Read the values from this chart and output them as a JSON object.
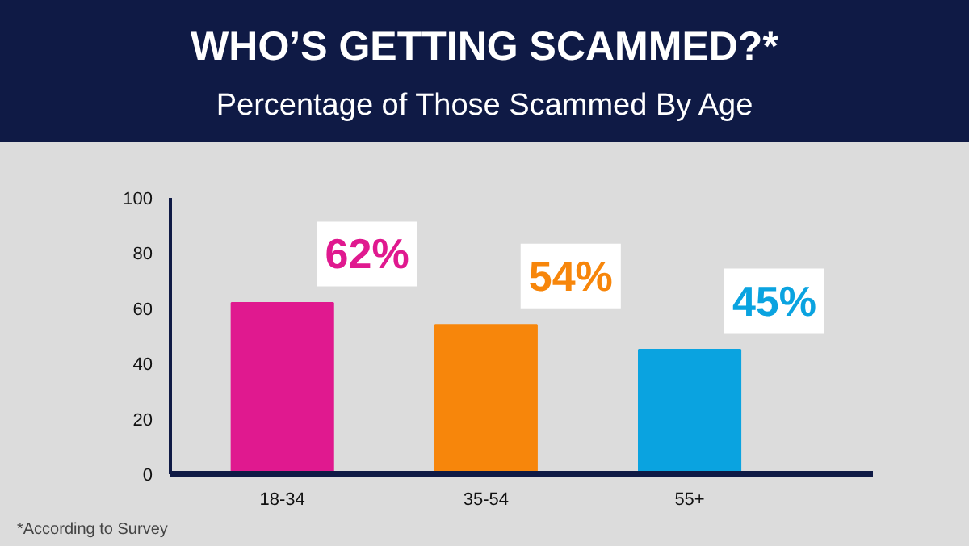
{
  "chart_data": {
    "type": "bar",
    "title": "WHO’S GETTING SCAMMED?*",
    "subtitle": "Percentage of Those Scammed By Age",
    "categories": [
      "18-34",
      "35-54",
      "55+"
    ],
    "values": [
      62,
      54,
      45
    ],
    "colors": [
      "#e0198f",
      "#f7860b",
      "#0aa3e0"
    ],
    "value_labels": [
      "62%",
      "54%",
      "45%"
    ],
    "ylim": [
      0,
      100
    ],
    "yticks": [
      0,
      20,
      40,
      60,
      80,
      100
    ],
    "grid": false,
    "annotations": [
      "*According to Survey"
    ]
  }
}
